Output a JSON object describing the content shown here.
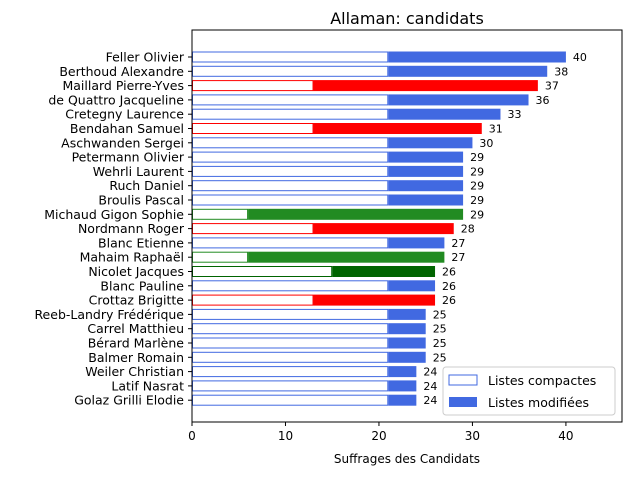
{
  "chart_data": {
    "type": "bar",
    "orientation": "horizontal",
    "stacked": true,
    "title": "Allaman: candidats",
    "xlabel": "Suffrages des Candidats",
    "ylabel": "",
    "xlim": [
      0,
      46
    ],
    "xticks": [
      "0",
      "10",
      "20",
      "30",
      "40"
    ],
    "grid": false,
    "legend": {
      "position": "lower-right",
      "entries": [
        {
          "label": "Listes compactes",
          "style": "outline",
          "color": "#4169e1"
        },
        {
          "label": "Listes modifiées",
          "style": "filled",
          "color": "#4169e1"
        }
      ]
    },
    "candidates": [
      {
        "name": "Feller Olivier",
        "compact": 21,
        "total": 40,
        "color": "#4169e1"
      },
      {
        "name": "Berthoud Alexandre",
        "compact": 21,
        "total": 38,
        "color": "#4169e1"
      },
      {
        "name": "Maillard Pierre-Yves",
        "compact": 13,
        "total": 37,
        "color": "#ff0000"
      },
      {
        "name": "de Quattro Jacqueline",
        "compact": 21,
        "total": 36,
        "color": "#4169e1"
      },
      {
        "name": "Cretegny Laurence",
        "compact": 21,
        "total": 33,
        "color": "#4169e1"
      },
      {
        "name": "Bendahan Samuel",
        "compact": 13,
        "total": 31,
        "color": "#ff0000"
      },
      {
        "name": "Aschwanden Sergei",
        "compact": 21,
        "total": 30,
        "color": "#4169e1"
      },
      {
        "name": "Petermann Olivier",
        "compact": 21,
        "total": 29,
        "color": "#4169e1"
      },
      {
        "name": "Wehrli Laurent",
        "compact": 21,
        "total": 29,
        "color": "#4169e1"
      },
      {
        "name": "Ruch Daniel",
        "compact": 21,
        "total": 29,
        "color": "#4169e1"
      },
      {
        "name": "Broulis Pascal",
        "compact": 21,
        "total": 29,
        "color": "#4169e1"
      },
      {
        "name": "Michaud Gigon Sophie",
        "compact": 6,
        "total": 29,
        "color": "#228b22"
      },
      {
        "name": "Nordmann Roger",
        "compact": 13,
        "total": 28,
        "color": "#ff0000"
      },
      {
        "name": "Blanc Etienne",
        "compact": 21,
        "total": 27,
        "color": "#4169e1"
      },
      {
        "name": "Mahaim Raphaël",
        "compact": 6,
        "total": 27,
        "color": "#228b22"
      },
      {
        "name": "Nicolet Jacques",
        "compact": 15,
        "total": 26,
        "color": "#006400"
      },
      {
        "name": "Blanc Pauline",
        "compact": 21,
        "total": 26,
        "color": "#4169e1"
      },
      {
        "name": "Crottaz Brigitte",
        "compact": 13,
        "total": 26,
        "color": "#ff0000"
      },
      {
        "name": "Reeb-Landry Frédérique",
        "compact": 21,
        "total": 25,
        "color": "#4169e1"
      },
      {
        "name": "Carrel Matthieu",
        "compact": 21,
        "total": 25,
        "color": "#4169e1"
      },
      {
        "name": "Bérard Marlène",
        "compact": 21,
        "total": 25,
        "color": "#4169e1"
      },
      {
        "name": "Balmer Romain",
        "compact": 21,
        "total": 25,
        "color": "#4169e1"
      },
      {
        "name": "Weiler Christian",
        "compact": 21,
        "total": 24,
        "color": "#4169e1"
      },
      {
        "name": "Latif Nasrat",
        "compact": 21,
        "total": 24,
        "color": "#4169e1"
      },
      {
        "name": "Golaz Grilli Elodie",
        "compact": 21,
        "total": 24,
        "color": "#4169e1"
      }
    ]
  }
}
